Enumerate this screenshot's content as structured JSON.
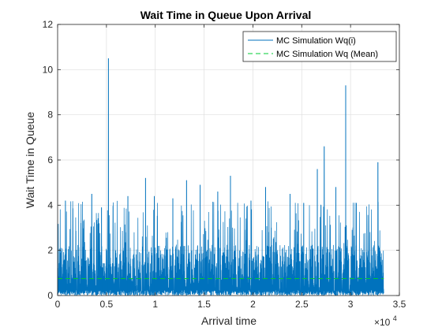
{
  "chart_data": {
    "type": "line",
    "title": "Wait Time in Queue Upon Arrival",
    "xlabel": "Arrival time",
    "ylabel": "Wait Time in Queue",
    "x_exponent_label": "×10",
    "x_exponent_power": "4",
    "xlim": [
      0,
      35000
    ],
    "ylim": [
      0,
      12
    ],
    "x_ticks": [
      0,
      5000,
      10000,
      15000,
      20000,
      25000,
      30000,
      35000
    ],
    "x_tick_labels": [
      "0",
      "0.5",
      "1",
      "1.5",
      "2",
      "2.5",
      "3",
      "3.5"
    ],
    "y_ticks": [
      0,
      2,
      4,
      6,
      8,
      10,
      12
    ],
    "y_tick_labels": [
      "0",
      "2",
      "4",
      "6",
      "8",
      "10",
      "12"
    ],
    "grid": true,
    "legend_position": "top-right",
    "series": [
      {
        "name": "MC Simulation Wq(i)",
        "style": "solid",
        "color": "#0072BD",
        "x_range": [
          0,
          33400
        ],
        "typical_range": [
          0,
          3
        ],
        "peaks": [
          {
            "x": 800,
            "y": 4.2
          },
          {
            "x": 3500,
            "y": 4.5
          },
          {
            "x": 4500,
            "y": 3.9
          },
          {
            "x": 5200,
            "y": 10.5
          },
          {
            "x": 7200,
            "y": 4.4
          },
          {
            "x": 9000,
            "y": 5.2
          },
          {
            "x": 9900,
            "y": 4.4
          },
          {
            "x": 11800,
            "y": 4.3
          },
          {
            "x": 13200,
            "y": 5.1
          },
          {
            "x": 14600,
            "y": 4.9
          },
          {
            "x": 16400,
            "y": 4.6
          },
          {
            "x": 17700,
            "y": 5.3
          },
          {
            "x": 19800,
            "y": 4.2
          },
          {
            "x": 21300,
            "y": 4.8
          },
          {
            "x": 23800,
            "y": 4.5
          },
          {
            "x": 25200,
            "y": 4.1
          },
          {
            "x": 26600,
            "y": 5.6
          },
          {
            "x": 27300,
            "y": 6.6
          },
          {
            "x": 28500,
            "y": 4.8
          },
          {
            "x": 29500,
            "y": 9.3
          },
          {
            "x": 30600,
            "y": 4.1
          },
          {
            "x": 32800,
            "y": 5.9
          }
        ]
      },
      {
        "name": "MC Simulation Wq (Mean)",
        "style": "dashed",
        "color": "#00CC33",
        "x": [
          0,
          33400
        ],
        "y": [
          0.75,
          0.75
        ]
      }
    ]
  }
}
